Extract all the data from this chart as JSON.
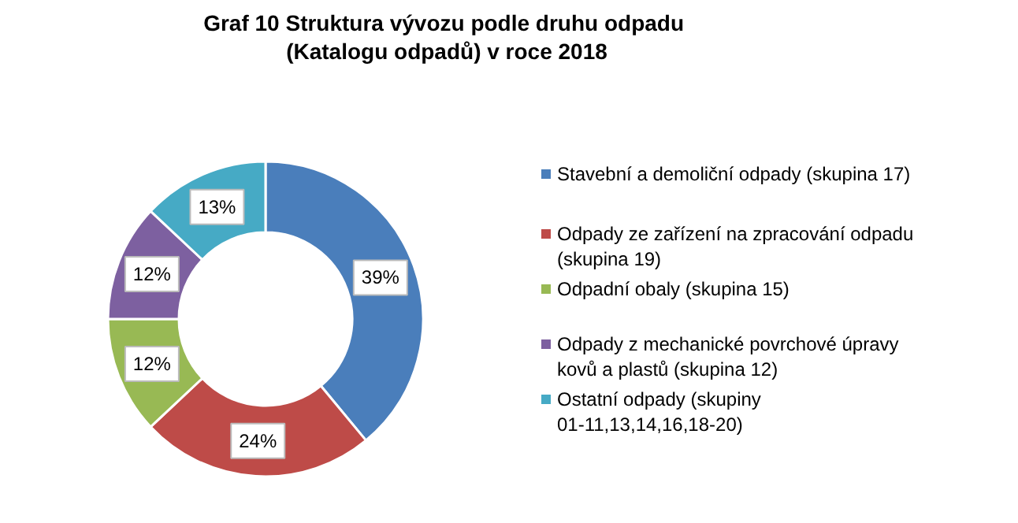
{
  "chart_data": {
    "type": "donut",
    "title": "Graf 10 Struktura  vývozu podle druhu odpadu\n(Katalogu odpadů) v roce 2018",
    "categories": [
      "Stavební a demoliční odpady (skupina 17)",
      "Odpady ze zařízení na zpracování odpadu (skupina 19)",
      "Odpadní obaly (skupina 15)",
      "Odpady z mechanické povrchové úpravy kovů a plastů (skupina 12)",
      "Ostatní odpady (skupiny 01-11,13,14,16,18-20)"
    ],
    "values": [
      39,
      24,
      12,
      12,
      13
    ],
    "colors": [
      "#4a7ebb",
      "#be4b48",
      "#98b954",
      "#7d60a0",
      "#46aac5"
    ],
    "value_labels": [
      "39%",
      "24%",
      "12%",
      "12%",
      "13%"
    ],
    "legend": "right"
  }
}
